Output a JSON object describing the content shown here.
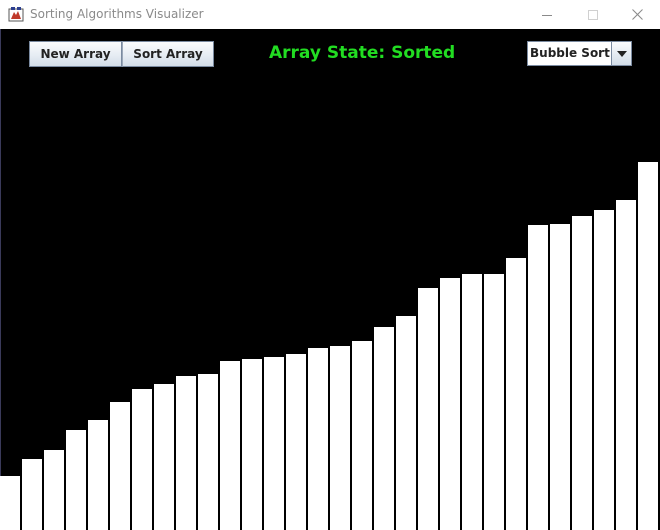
{
  "window": {
    "title": "Sorting Algorithms Visualizer",
    "icon": "java-app-icon"
  },
  "toolbar": {
    "new_array_label": "New Array",
    "sort_array_label": "Sort Array",
    "status_text": "Array State: Sorted",
    "algorithm_selected": "Bubble Sort"
  },
  "colors": {
    "canvas_background": "#000000",
    "bar_color": "#ffffff",
    "status_color": "#22dd22"
  },
  "array": {
    "state": "Sorted",
    "values": [
      54,
      71,
      80,
      100,
      110,
      128,
      141,
      146,
      154,
      156,
      169,
      171,
      173,
      176,
      182,
      184,
      189,
      203,
      214,
      242,
      252,
      256,
      256,
      272,
      305,
      306,
      314,
      320,
      330,
      368,
      380
    ]
  }
}
